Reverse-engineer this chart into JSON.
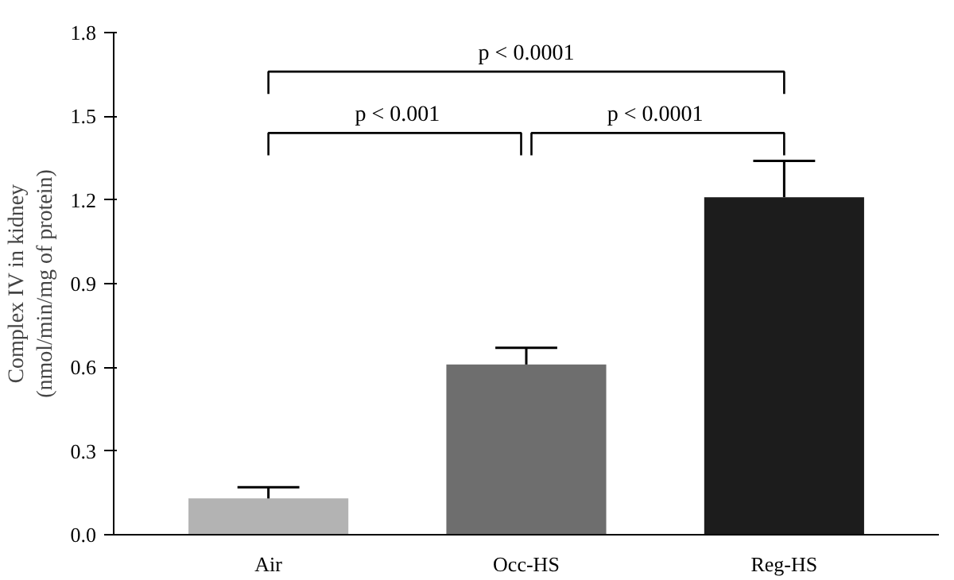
{
  "chart_data": {
    "type": "bar",
    "ylabel": "Complex IV in kidney\n(nmol/min/mg of protein)",
    "categories": [
      "Air",
      "Occ-HS",
      "Reg-HS"
    ],
    "values": [
      0.13,
      0.61,
      1.21
    ],
    "colors": [
      "#b3b3b3",
      "#6e6e6e",
      "#1c1c1c"
    ],
    "errors": [
      0.04,
      0.06,
      0.13
    ],
    "ylim": [
      0,
      1.8
    ],
    "yticks": [
      {
        "value": 0,
        "label": "0.0"
      },
      0.3,
      0.6,
      0.9,
      1.2,
      1.5,
      1.8
    ],
    "grid": false,
    "annotations": [
      "p < 0.001",
      "p < 0.0001",
      "p < 0.0001"
    ]
  }
}
